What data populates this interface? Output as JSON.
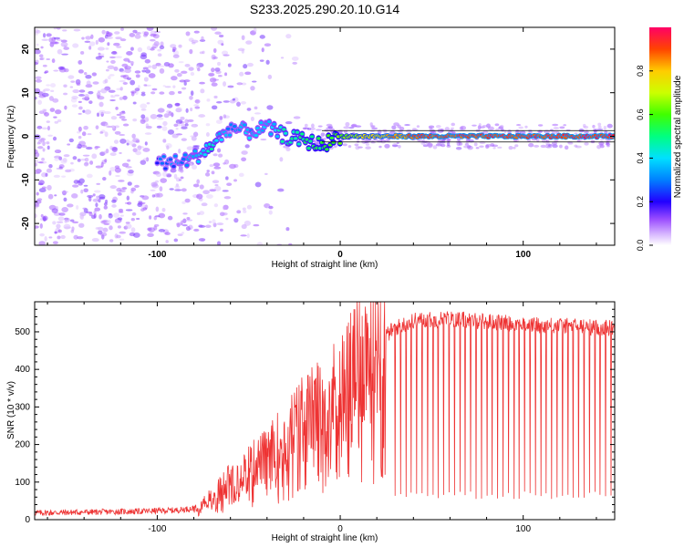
{
  "title": "S233.2025.290.20.10.G14",
  "chart_data": [
    {
      "type": "heatmap",
      "name": "spectrogram",
      "xlabel": "Height of straight line (km)",
      "ylabel": "Frequency (Hz)",
      "xlim": [
        -167,
        150
      ],
      "ylim": [
        -25,
        25
      ],
      "xticks": [
        -100,
        0,
        100
      ],
      "yticks": [
        -20,
        -10,
        0,
        10,
        20
      ],
      "colorbar": {
        "label": "Normalized spectral amplitude",
        "range": [
          0,
          1
        ],
        "ticks": [
          "0.0",
          "0.2",
          "0.4",
          "0.6",
          "0.8"
        ],
        "tick_values": [
          0,
          0.2,
          0.4,
          0.6,
          0.8
        ]
      },
      "ridge": {
        "x": [
          -100,
          -90,
          -80,
          -70,
          -60,
          -50,
          -40,
          -30,
          -20,
          -10,
          0,
          10,
          20,
          30,
          50,
          100,
          150
        ],
        "freq": [
          -6,
          -6,
          -5,
          -2,
          2,
          1,
          2,
          0,
          -1,
          -2,
          0,
          0,
          0,
          0,
          0,
          0,
          0
        ],
        "amplitude": [
          0.25,
          0.3,
          0.35,
          0.45,
          0.3,
          0.35,
          0.35,
          0.45,
          0.5,
          0.55,
          0.6,
          0.7,
          0.75,
          0.85,
          0.9,
          0.92,
          0.95
        ]
      }
    },
    {
      "type": "line",
      "name": "snr",
      "xlabel": "Height of straight line (km)",
      "ylabel": "SNR (10 * v/v)",
      "xlim": [
        -167,
        150
      ],
      "ylim": [
        0,
        580
      ],
      "xticks": [
        -100,
        0,
        100
      ],
      "yticks": [
        0,
        100,
        200,
        300,
        400,
        500
      ],
      "color": "#ee3333",
      "envelope": {
        "x": [
          -167,
          -110,
          -90,
          -80,
          -70,
          -60,
          -50,
          -40,
          -30,
          -20,
          -10,
          0,
          10,
          20,
          30,
          40,
          60,
          100,
          150
        ],
        "y": [
          18,
          22,
          25,
          30,
          60,
          110,
          140,
          170,
          220,
          270,
          300,
          350,
          420,
          470,
          510,
          530,
          535,
          520,
          510
        ]
      },
      "dropouts": {
        "start_km": 30,
        "end_km": 148,
        "count": 40,
        "minimum": 55
      }
    }
  ]
}
